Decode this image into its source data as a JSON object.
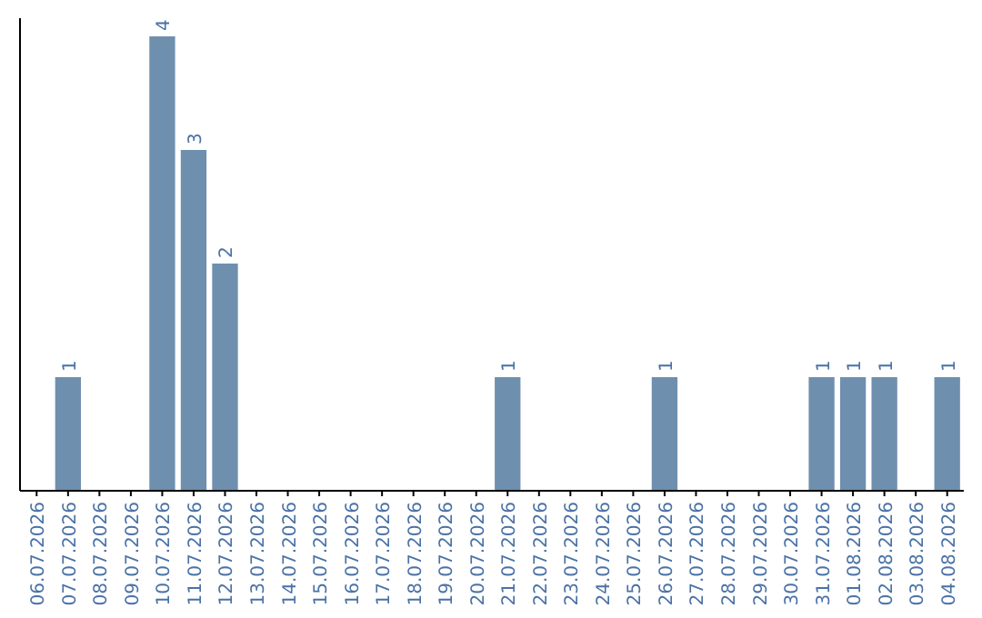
{
  "chart_data": {
    "type": "bar",
    "categories": [
      "06.07.2026",
      "07.07.2026",
      "08.07.2026",
      "09.07.2026",
      "10.07.2026",
      "11.07.2026",
      "12.07.2026",
      "13.07.2026",
      "14.07.2026",
      "15.07.2026",
      "16.07.2026",
      "17.07.2026",
      "18.07.2026",
      "19.07.2026",
      "20.07.2026",
      "21.07.2026",
      "22.07.2026",
      "23.07.2026",
      "24.07.2026",
      "25.07.2026",
      "26.07.2026",
      "27.07.2026",
      "28.07.2026",
      "29.07.2026",
      "30.07.2026",
      "31.07.2026",
      "01.08.2026",
      "02.08.2026",
      "03.08.2026",
      "04.08.2026"
    ],
    "values": [
      0,
      1,
      0,
      0,
      4,
      3,
      2,
      0,
      0,
      0,
      0,
      0,
      0,
      0,
      0,
      1,
      0,
      0,
      0,
      0,
      1,
      0,
      0,
      0,
      0,
      1,
      1,
      1,
      0,
      1
    ],
    "value_labels": [
      null,
      "1",
      null,
      null,
      "4",
      "3",
      "2",
      null,
      null,
      null,
      null,
      null,
      null,
      null,
      null,
      "1",
      null,
      null,
      null,
      null,
      "1",
      null,
      null,
      null,
      null,
      "1",
      "1",
      "1",
      null,
      "1"
    ],
    "color": "#6f8fae"
  }
}
